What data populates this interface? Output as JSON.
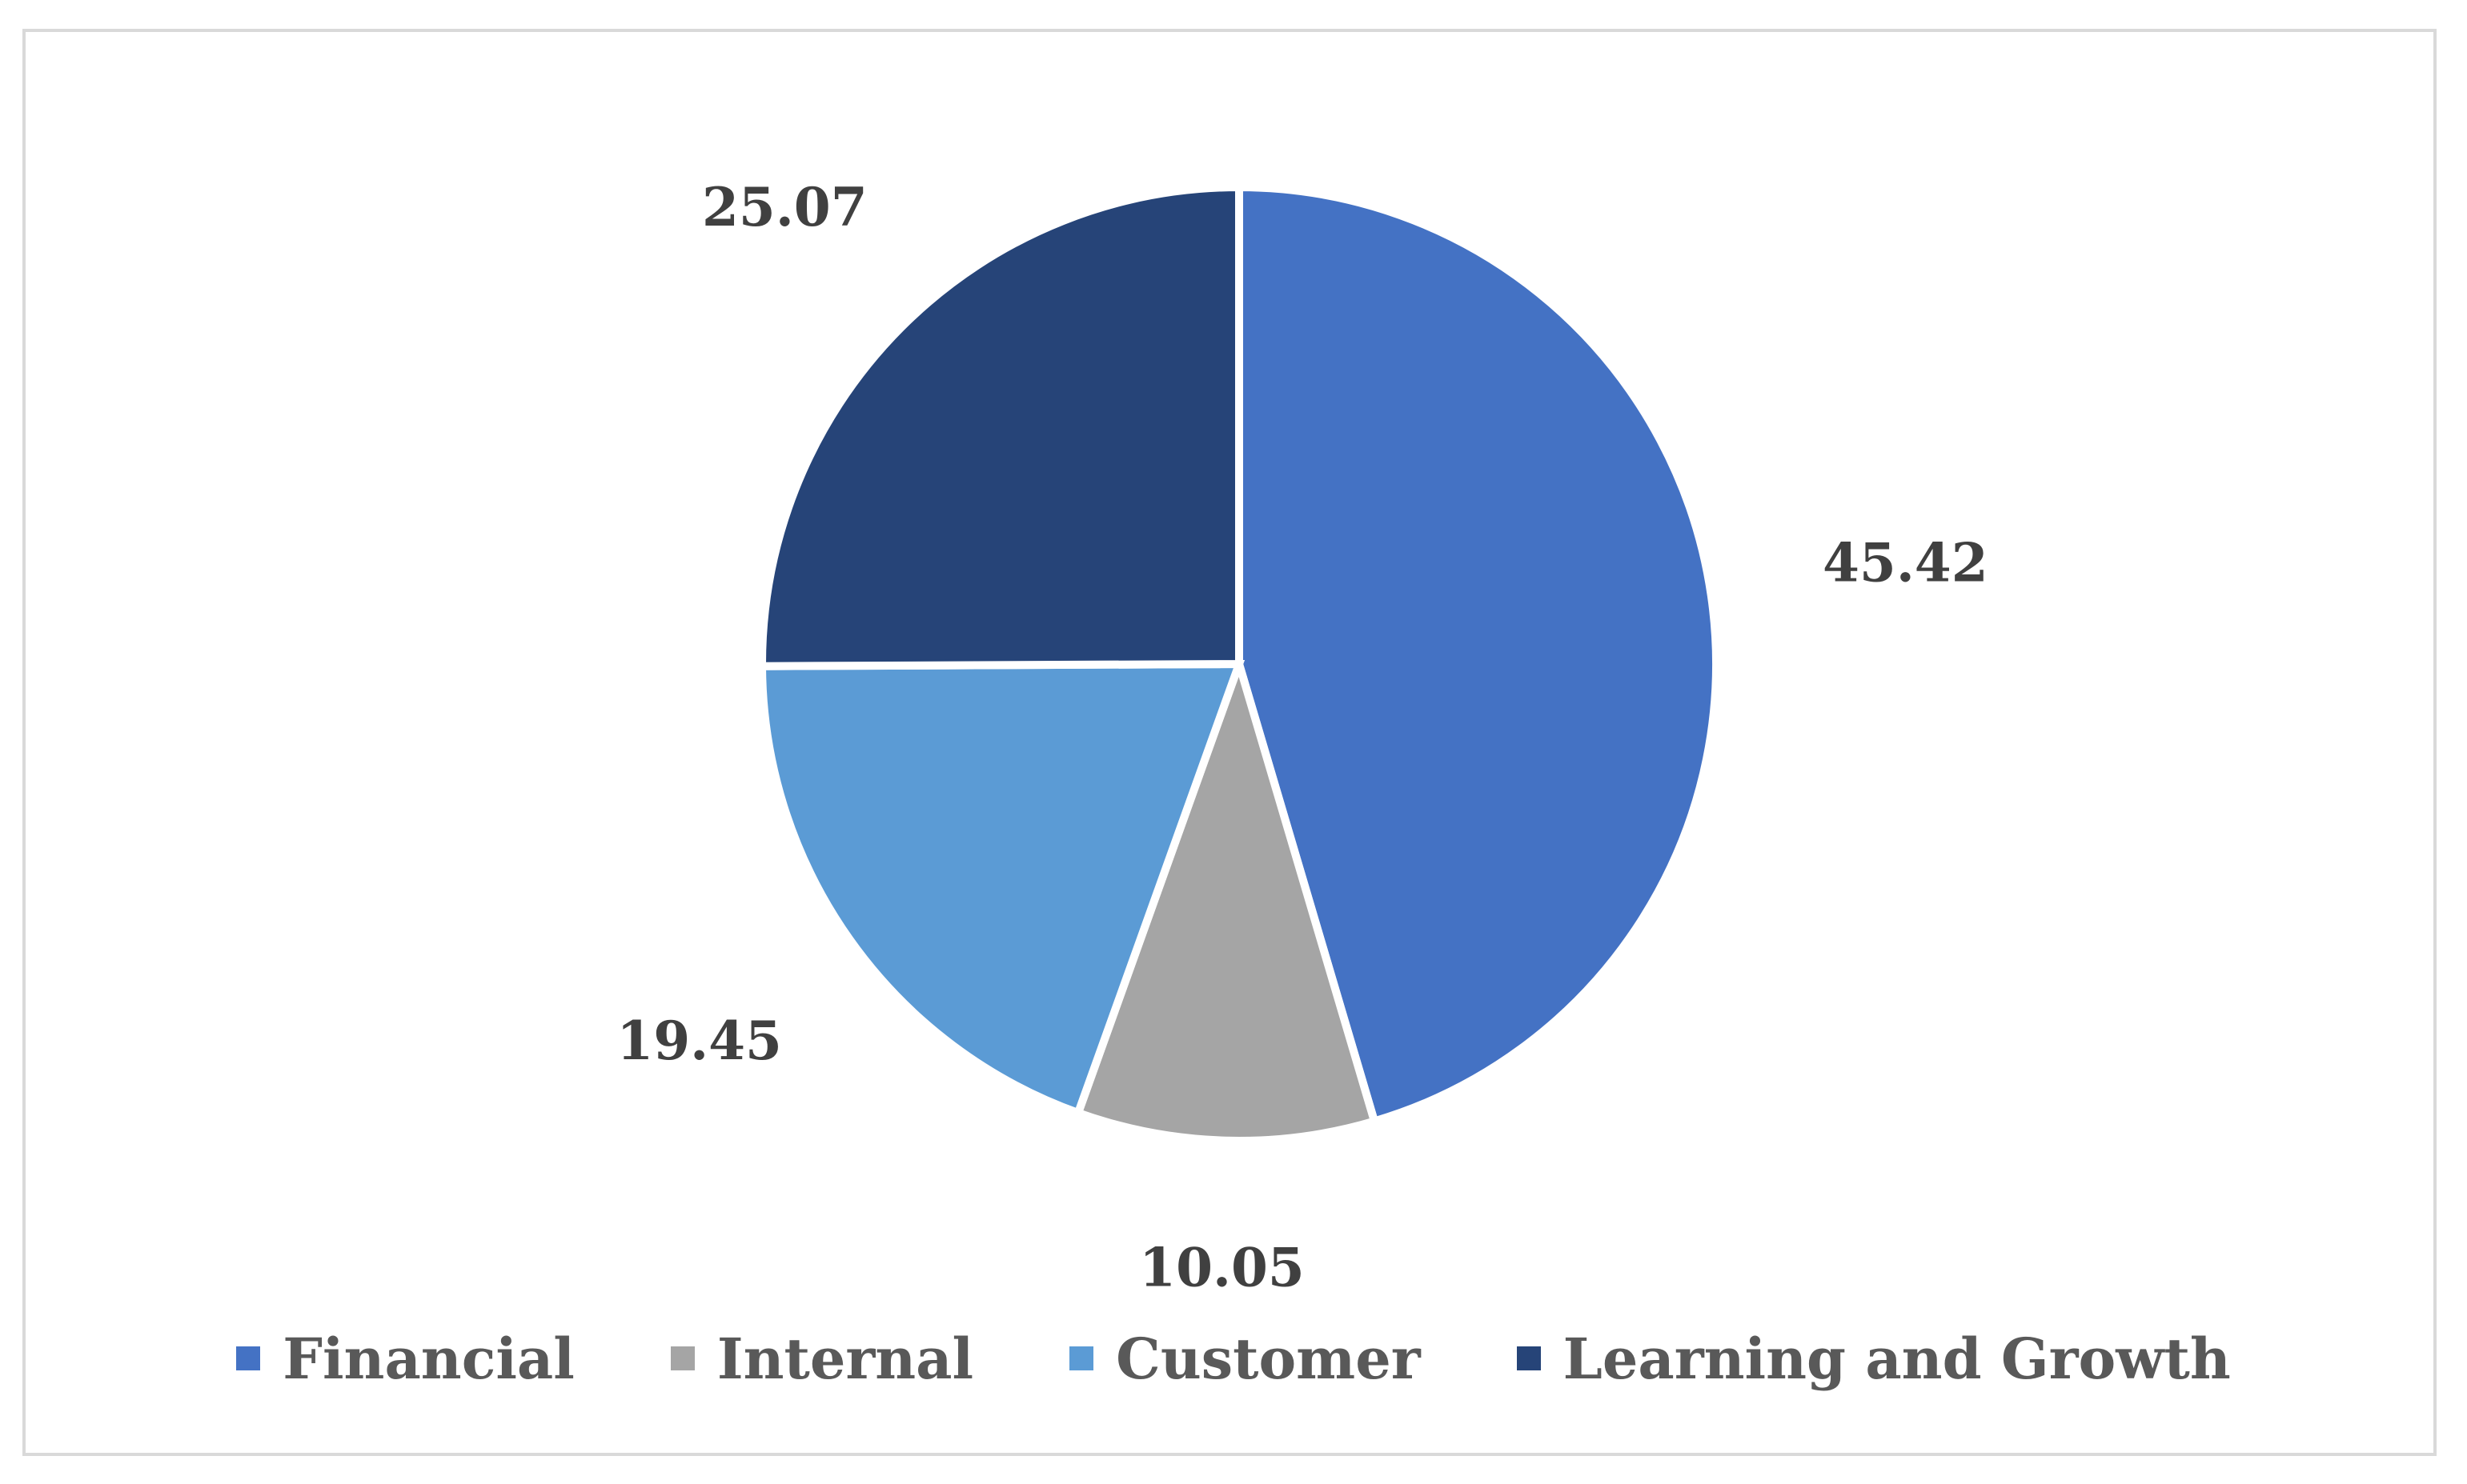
{
  "chart_data": {
    "type": "pie",
    "title": "",
    "categories": [
      "Financial",
      "Internal",
      "Customer",
      "Learning and Growth"
    ],
    "values": [
      45.42,
      10.05,
      19.45,
      25.07
    ],
    "colors": [
      "#4472c4",
      "#a5a5a5",
      "#5b9bd5",
      "#264478"
    ],
    "data_labels": [
      "45.42",
      "10.05",
      "19.45",
      "25.07"
    ],
    "start_angle_deg": 0,
    "direction": "clockwise",
    "legend_placement": "bottom"
  }
}
